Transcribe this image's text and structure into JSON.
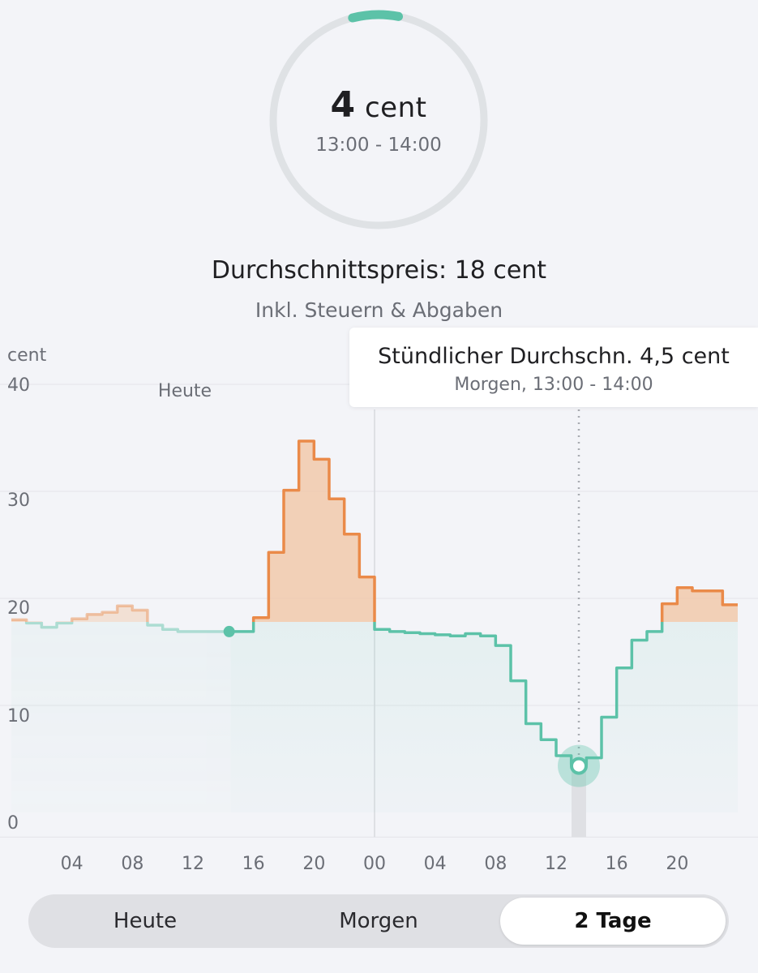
{
  "gauge": {
    "price_value": "4",
    "price_unit": "cent",
    "time_range": "13:00 - 14:00",
    "fill_fraction": 0.07,
    "track_color": "#dfe2e5",
    "fill_color": "#5cc2a8"
  },
  "summary": {
    "average_price": "Durchschnittspreis: 18 cent",
    "note": "Inkl. Steuern & Abgaben"
  },
  "tooltip": {
    "title": "Stündlicher Durchschn. 4,5 cent",
    "subtitle": "Morgen, 13:00 - 14:00"
  },
  "toggle": {
    "options": [
      "Heute",
      "Morgen",
      "2 Tage"
    ],
    "selected": "2 Tage"
  },
  "colors": {
    "cheap": "#5cc2a8",
    "expensive": "#ea8a49",
    "background": "#f3f4f8"
  },
  "chart_data": {
    "type": "line",
    "step": true,
    "ylabel": "cent",
    "ylim": [
      0,
      40
    ],
    "yticks": [
      "40",
      "30",
      "20",
      "10",
      "0"
    ],
    "xticks": [
      "04",
      "08",
      "12",
      "16",
      "20",
      "00",
      "04",
      "08",
      "12",
      "16",
      "20"
    ],
    "day_marker_label": "Heute",
    "threshold": 17.8,
    "now_hour": 14.5,
    "selected_hour": 37.5,
    "grid": true,
    "x": [
      0,
      1,
      2,
      3,
      4,
      5,
      6,
      7,
      8,
      9,
      10,
      11,
      12,
      13,
      14,
      15,
      16,
      17,
      18,
      19,
      20,
      21,
      22,
      23,
      24,
      25,
      26,
      27,
      28,
      29,
      30,
      31,
      32,
      33,
      34,
      35,
      36,
      37,
      38,
      39,
      40,
      41,
      42,
      43,
      44,
      45,
      46,
      47
    ],
    "series": [
      {
        "values": [
          18.0,
          17.7,
          17.3,
          17.7,
          18.1,
          18.5,
          18.7,
          19.3,
          18.9,
          17.5,
          17.1,
          16.9,
          16.9,
          16.9,
          16.9,
          16.9,
          18.2,
          24.3,
          30.1,
          34.7,
          33.0,
          29.3,
          26.0,
          22.0,
          17.1,
          16.9,
          16.8,
          16.7,
          16.6,
          16.5,
          16.7,
          16.5,
          15.6,
          12.3,
          8.3,
          6.8,
          5.3,
          4.5,
          5.1,
          8.9,
          13.5,
          16.1,
          16.9,
          19.5,
          21.0,
          20.7,
          20.7,
          19.4
        ]
      }
    ]
  }
}
